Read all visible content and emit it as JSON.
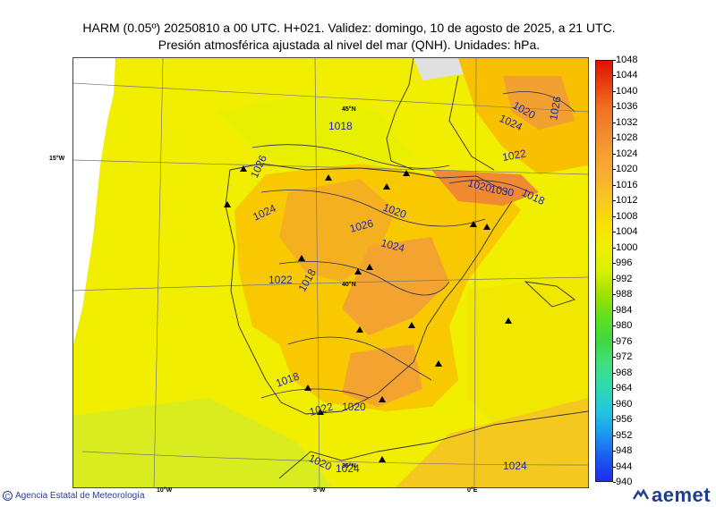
{
  "header": {
    "line1": "HARM (0.05º) 20250810 a 00 UTC. H+021. Validez: domingo, 10 de agosto de 2025, a 21 UTC.",
    "line2": "Presión atmosférica ajustada al nivel del mar (QNH). Unidades: hPa."
  },
  "map": {
    "grid_labels": {
      "lat_45": "45°N",
      "lat_40": "40°N",
      "lat_35": "35°N",
      "lon_15w": "15°W",
      "lon_10w": "10°W",
      "lon_5w": "5°W",
      "lon_0": "0°E"
    },
    "isobar_labels": [
      "1018",
      "1026",
      "1024",
      "1026",
      "1022",
      "1020",
      "1024",
      "1020",
      "1030",
      "1018",
      "1024",
      "1020",
      "1024",
      "1026",
      "1022",
      "1018",
      "1018",
      "1022",
      "1020",
      "1020",
      "1024"
    ]
  },
  "colorbar": {
    "ticks": [
      "1048",
      "1044",
      "1040",
      "1036",
      "1032",
      "1028",
      "1024",
      "1020",
      "1016",
      "1012",
      "1008",
      "1004",
      "1000",
      "996",
      "992",
      "988",
      "984",
      "980",
      "976",
      "972",
      "968",
      "964",
      "960",
      "956",
      "952",
      "948",
      "944",
      "940"
    ],
    "colors": [
      "#1e2cf0",
      "#1a5af0",
      "#1e96f0",
      "#20c8e0",
      "#30d8b0",
      "#40e080",
      "#40d840",
      "#60e020",
      "#a0e000",
      "#d8f000",
      "#f0f000",
      "#f8e000",
      "#f8c820",
      "#f8b030",
      "#f8a030",
      "#f08830",
      "#f07020",
      "#e84010",
      "#e01000"
    ]
  },
  "footer": {
    "copyright_symbol": "C",
    "agency": "Agencia Estatal de Meteorología",
    "brand": "aemet"
  }
}
